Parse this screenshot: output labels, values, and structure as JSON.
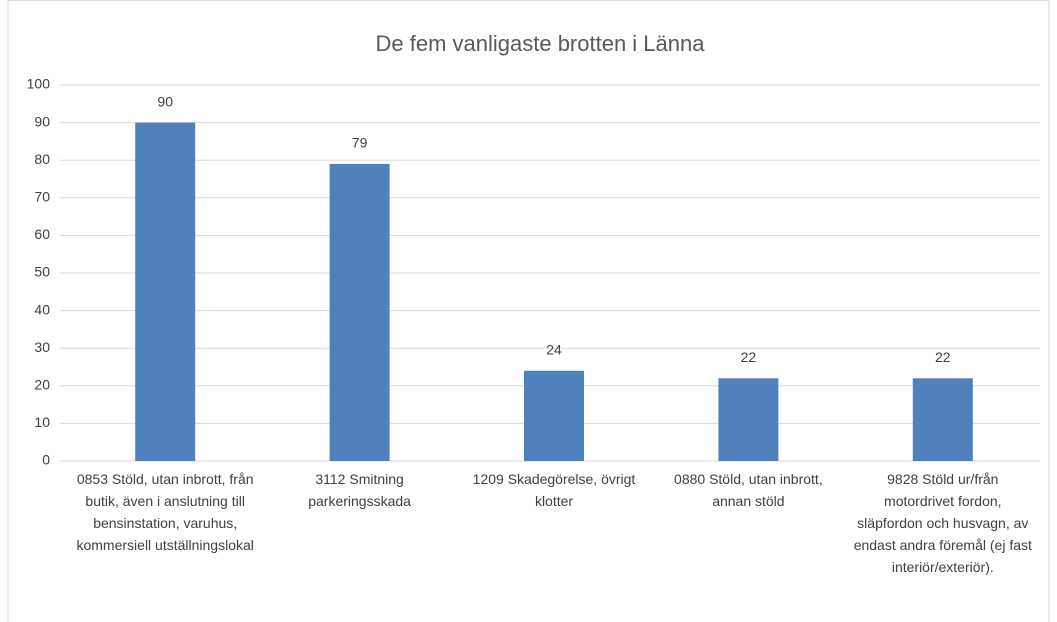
{
  "chart_data": {
    "type": "bar",
    "title": "De fem vanligaste brotten i Länna",
    "categories": [
      "0853 Stöld, utan inbrott, från butik, även i anslutning till bensinstation, varuhus, kommersiell utställningslokal",
      "3112 Smitning parkeringsskada",
      "1209 Skadegörelse, övrigt klotter",
      "0880 Stöld, utan inbrott, annan stöld",
      "9828 Stöld ur/från motordrivet fordon, släpfordon och husvagn, av endast andra föremål (ej fast interiör/exteriör)."
    ],
    "values": [
      90,
      79,
      24,
      22,
      22
    ],
    "color": "#4f81bd",
    "ylim": [
      0,
      100
    ],
    "yticks": [
      0,
      10,
      20,
      30,
      40,
      50,
      60,
      70,
      80,
      90,
      100
    ],
    "grid": true
  }
}
